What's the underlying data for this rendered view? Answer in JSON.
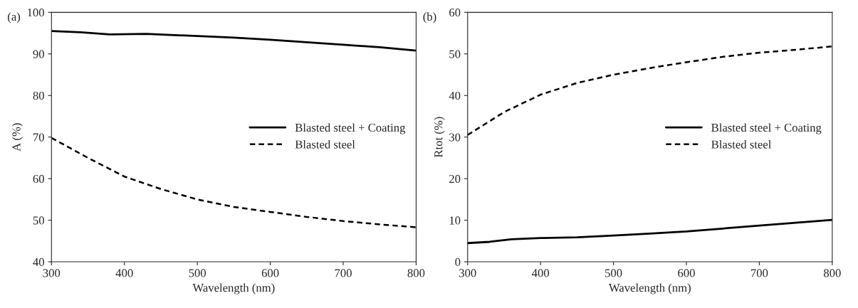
{
  "chart_data": [
    {
      "type": "line",
      "xlabel": "Wavelength (nm)",
      "ylabel": "A (%)",
      "annotations": [
        "(a)"
      ],
      "xlim": [
        300,
        800
      ],
      "xticks": [
        300,
        400,
        500,
        600,
        700,
        800
      ],
      "ylim": [
        40,
        100
      ],
      "yticks": [
        40,
        50,
        60,
        70,
        80,
        90,
        100
      ],
      "legend": "right",
      "grid": false,
      "series": [
        {
          "name": "Blasted steel + Coating",
          "color": "#000000",
          "line_style": "solid",
          "x": [
            300,
            340,
            380,
            430,
            500,
            550,
            600,
            650,
            700,
            750,
            800
          ],
          "values": [
            95.5,
            95.2,
            94.7,
            94.8,
            94.3,
            93.9,
            93.4,
            92.8,
            92.2,
            91.6,
            90.8
          ]
        },
        {
          "name": "Blasted steel",
          "color": "#000000",
          "line_style": "dashed",
          "x": [
            300,
            350,
            400,
            450,
            500,
            550,
            600,
            650,
            700,
            750,
            800
          ],
          "values": [
            69.8,
            65.0,
            60.5,
            57.5,
            55.0,
            53.2,
            52.0,
            50.8,
            49.8,
            49.0,
            48.3
          ]
        }
      ]
    },
    {
      "type": "line",
      "xlabel": "Wavelength (nm)",
      "ylabel": "Rtot (%)",
      "annotations": [
        "(b)"
      ],
      "xlim": [
        300,
        800
      ],
      "xticks": [
        300,
        400,
        500,
        600,
        700,
        800
      ],
      "ylim": [
        0,
        60
      ],
      "yticks": [
        0,
        10,
        20,
        30,
        40,
        50,
        60
      ],
      "legend": "right",
      "grid": false,
      "series": [
        {
          "name": "Blasted steel + Coating",
          "color": "#000000",
          "line_style": "solid",
          "x": [
            300,
            330,
            360,
            400,
            450,
            500,
            550,
            600,
            650,
            700,
            750,
            800
          ],
          "values": [
            4.5,
            4.8,
            5.4,
            5.7,
            5.9,
            6.3,
            6.8,
            7.3,
            8.0,
            8.7,
            9.4,
            10.1
          ]
        },
        {
          "name": "Blasted steel",
          "color": "#000000",
          "line_style": "dashed",
          "x": [
            300,
            350,
            400,
            450,
            500,
            550,
            600,
            650,
            700,
            750,
            800
          ],
          "values": [
            30.5,
            36.0,
            40.2,
            43.0,
            45.0,
            46.6,
            48.0,
            49.3,
            50.3,
            51.0,
            51.8
          ]
        }
      ]
    }
  ]
}
